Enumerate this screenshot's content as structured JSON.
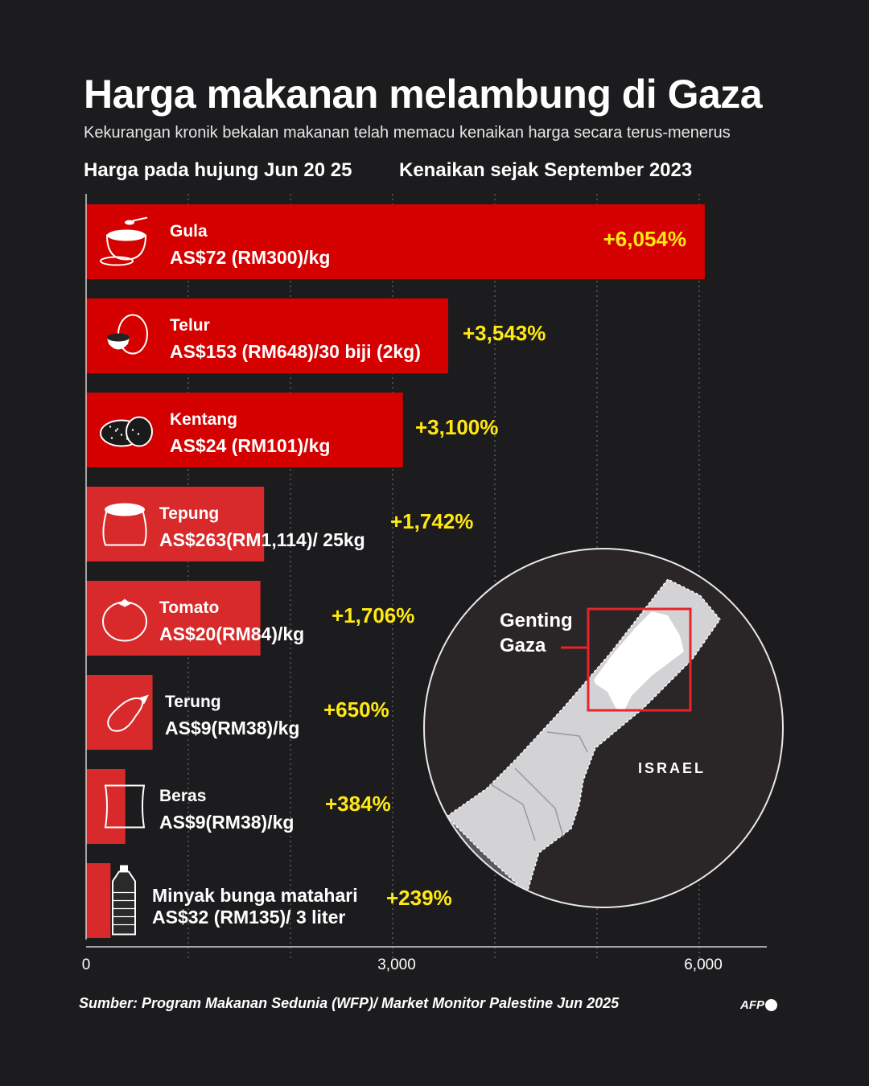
{
  "title": "Harga makanan melambung di Gaza",
  "subtitle": "Kekurangan kronik bekalan makanan telah memacu kenaikan harga secara terus-menerus",
  "column_headers": {
    "left": "Harga pada hujung Jun 20 25",
    "right": "Kenaikan sejak September 2023"
  },
  "map": {
    "label_line1": "Genting",
    "label_line2": "Gaza",
    "country_label": "ISRAEL"
  },
  "source": "Sumber: Program Makanan Sedunia (WFP)/ Market Monitor Palestine Jun 2025",
  "logo": "AFP",
  "colors": {
    "background": "#1c1c1e",
    "bar": "#d50000",
    "bar_light": "#d82a2a",
    "percent_text": "#ffe812",
    "grid": "#6a6a6a"
  },
  "chart_data": {
    "type": "bar",
    "orientation": "horizontal",
    "xlim": [
      0,
      6800
    ],
    "x_ticks": [
      0,
      3000,
      6000
    ],
    "x_tick_labels": [
      "0",
      "3,000",
      "6,000"
    ],
    "grid": "dotted vertical lines",
    "categories": [
      "Gula",
      "Telur",
      "Kentang",
      "Tepung",
      "Tomato",
      "Terung",
      "Beras",
      "Minyak bunga matahari"
    ],
    "values": [
      6054,
      3543,
      3100,
      1742,
      1706,
      650,
      384,
      239
    ],
    "value_labels": [
      "+6,054%",
      "+3,543%",
      "+3,100%",
      "+1,742%",
      "+1,706%",
      "+650%",
      "+384%",
      "+239%"
    ],
    "prices": [
      "AS$72 (RM300)/kg",
      "AS$153 (RM648)/30 biji (2kg)",
      "AS$24 (RM101)/kg",
      "AS$263(RM1,114)/ 25kg",
      "AS$20(RM84)/kg",
      "AS$9(RM38)/kg",
      "AS$9(RM38)/kg",
      "AS$32 (RM135)/ 3 liter"
    ],
    "icons": [
      "sugar-bowl-icon",
      "egg-icon",
      "potato-icon",
      "flour-sack-icon",
      "tomato-icon",
      "eggplant-icon",
      "rice-bag-icon",
      "oil-bottle-icon"
    ]
  }
}
